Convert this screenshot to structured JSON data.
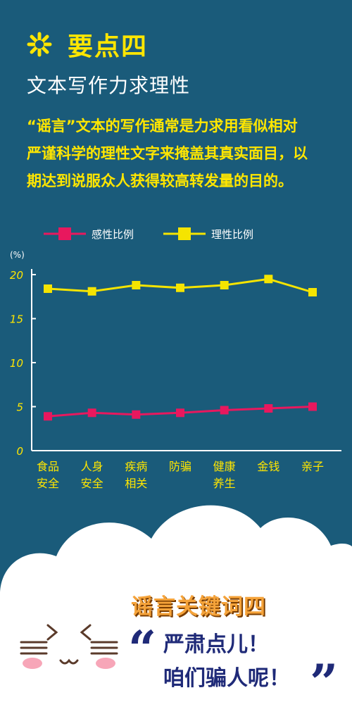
{
  "header": {
    "title": "要点四",
    "subtitle": "文本写作力求理性",
    "paragraph_lines": [
      "“谣言”文本的写作通常是力求用看似相对",
      "严谨科学的理性文字来掩盖其真实面目，以",
      "期达到说服众人获得较高转发量的目的。"
    ]
  },
  "colors": {
    "background": "#1a5b7a",
    "accent_yellow": "#ffe600",
    "series_emotional": "#e8185e",
    "series_rational": "#f5e400",
    "keyword_title": "#f5a33a",
    "quote_blue": "#1f2a78"
  },
  "chart_data": {
    "type": "line",
    "unit_label": "(%)",
    "categories": [
      [
        "食品",
        "安全"
      ],
      [
        "人身",
        "安全"
      ],
      [
        "疾病",
        "相关"
      ],
      [
        "防骗"
      ],
      [
        "健康",
        "养生"
      ],
      [
        "金钱"
      ],
      [
        "亲子"
      ]
    ],
    "series": [
      {
        "name": "感性比例",
        "values": [
          3.9,
          4.3,
          4.1,
          4.3,
          4.6,
          4.8,
          5.0
        ]
      },
      {
        "name": "理性比例",
        "values": [
          18.4,
          18.1,
          18.8,
          18.5,
          18.8,
          19.5,
          18.0
        ]
      }
    ],
    "ylim": [
      0,
      20
    ],
    "yticks": [
      0,
      5,
      10,
      15,
      20
    ],
    "legend_position": "top",
    "grid": false
  },
  "footer": {
    "keyword_title": "谣言关键词四",
    "quote_line1": "严肃点儿！",
    "quote_line2": "咱们骗人呢！",
    "open_quote": "“",
    "close_quote": "”"
  }
}
